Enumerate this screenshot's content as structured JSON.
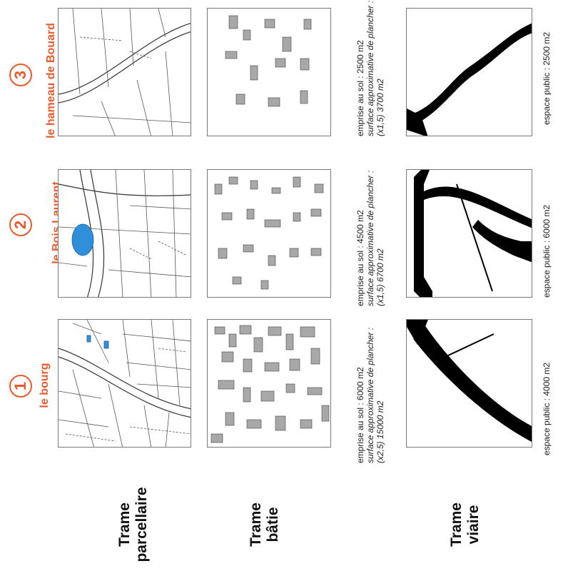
{
  "rows": {
    "parcellaire": [
      "Trame",
      "parcellaire"
    ],
    "batie": [
      "Trame",
      "bâtie"
    ],
    "viaire": [
      "Trame",
      "viaire"
    ]
  },
  "sites": [
    {
      "number": "1",
      "name": "le bourg",
      "emprise": "emprise au sol : 6000 m2",
      "surface_label": "surface approximative de plancher :",
      "surface_value": "(x2,5) 15000 m2",
      "espace_public": "espace public : 4000 m2"
    },
    {
      "number": "2",
      "name": "le Bois Laurent",
      "emprise": "emprise au sol : 4500 m2",
      "surface_label": "surface approximative de plancher :",
      "surface_value": "(x1,5) 6700 m2",
      "espace_public": "espace public : 6000 m2"
    },
    {
      "number": "3",
      "name": "le hameau de Bouard",
      "emprise": "emprise au sol : 2500 m2",
      "surface_label": "surface approximative de plancher :",
      "surface_value": "(x1,5) 3700 m2",
      "espace_public": "espace public : 2500 m2"
    }
  ],
  "colors": {
    "accent": "#ec5a2b",
    "building": "#a8a8a8",
    "water": "#2f8fd8",
    "road": "#000000"
  }
}
